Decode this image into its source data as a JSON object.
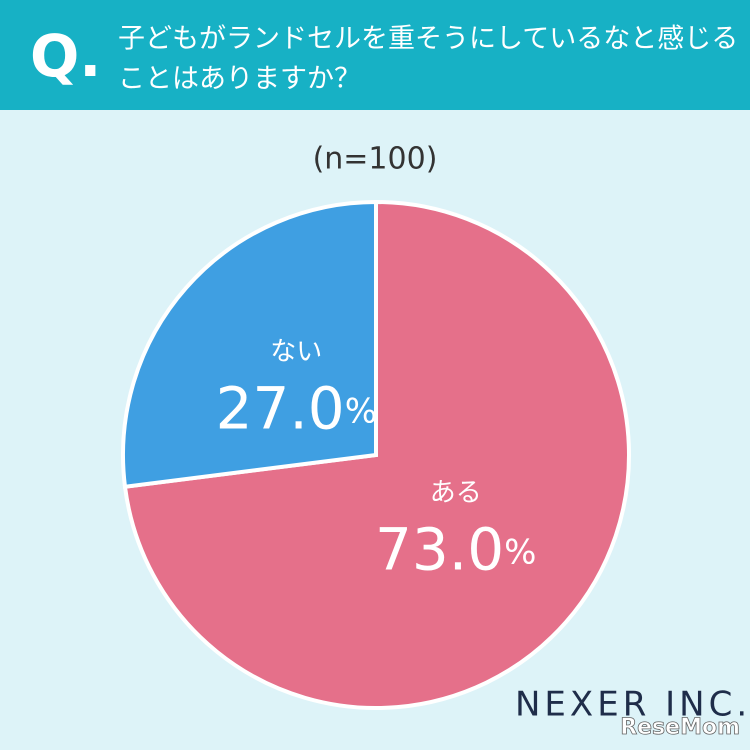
{
  "header": {
    "mark": "Q.",
    "question_lines": [
      "子どもがランドセルを重そうにしているなと感じる",
      "ことはありますか？"
    ]
  },
  "chart_data": {
    "type": "pie",
    "subtitle": "(n=100)",
    "categories": [
      "ある",
      "ない"
    ],
    "values": [
      73.0,
      27.0
    ],
    "value_labels": [
      "73.0%",
      "27.0%"
    ],
    "colors": [
      "#e5708a",
      "#3f9fe2"
    ]
  },
  "footer": {
    "logo": "NEXER INC.",
    "watermark": "ReseMom"
  }
}
